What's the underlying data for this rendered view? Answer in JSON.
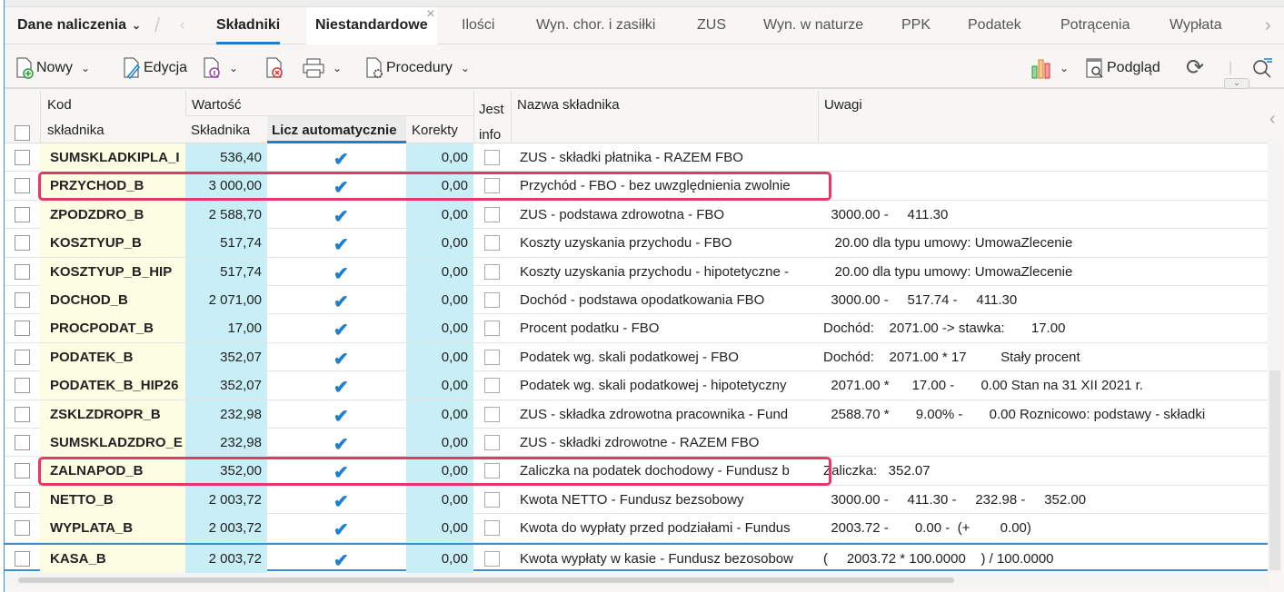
{
  "tabs": {
    "dropdown": "Dane naliczenia",
    "items": [
      "Składniki",
      "Niestandardowe",
      "Ilości",
      "Wyn. chor. i zasiłki",
      "ZUS",
      "Wyn. w naturze",
      "PPK",
      "Podatek",
      "Potrącenia",
      "Wypłata"
    ],
    "active": "Składniki"
  },
  "toolbar": {
    "new": "Nowy",
    "edit": "Edycja",
    "procedures": "Procedury",
    "preview": "Podgląd"
  },
  "columns": {
    "kod1": "Kod",
    "kod2": "składnika",
    "wartosc": "Wartość",
    "skladnika": "Składnika",
    "licz": "Licz automatycznie",
    "korekty": "Korekty",
    "jest1": "Jest",
    "jest2": "info",
    "nazwa": "Nazwa składnika",
    "uwagi": "Uwagi"
  },
  "rows": [
    {
      "kod": "SUMSKLADKIPLA_I",
      "wartosc": "536,40",
      "auto": true,
      "korekty": "0,00",
      "nazwa": "ZUS - składki płatnika - RAZEM FBO",
      "uwagi": ""
    },
    {
      "kod": "PRZYCHOD_B",
      "wartosc": "3 000,00",
      "auto": true,
      "korekty": "0,00",
      "nazwa": "Przychód - FBO - bez uwzględnienia zwolnie",
      "uwagi": "",
      "highlighted": true
    },
    {
      "kod": "ZPODZDRO_B",
      "wartosc": "2 588,70",
      "auto": true,
      "korekty": "0,00",
      "nazwa": "ZUS - podstawa zdrowotna - FBO",
      "uwagi": "  3000.00 -     411.30"
    },
    {
      "kod": "KOSZTYUP_B",
      "wartosc": "517,74",
      "auto": true,
      "korekty": "0,00",
      "nazwa": "Koszty uzyskania przychodu - FBO",
      "uwagi": "   20.00 dla typu umowy: UmowaZlecenie"
    },
    {
      "kod": "KOSZTYUP_B_HIP",
      "wartosc": "517,74",
      "auto": true,
      "korekty": "0,00",
      "nazwa": "Koszty uzyskania przychodu - hipotetyczne -",
      "uwagi": "   20.00 dla typu umowy: UmowaZlecenie"
    },
    {
      "kod": "DOCHOD_B",
      "wartosc": "2 071,00",
      "auto": true,
      "korekty": "0,00",
      "nazwa": "Dochód - podstawa opodatkowania FBO",
      "uwagi": "  3000.00 -     517.74 -     411.30"
    },
    {
      "kod": "PROCPODAT_B",
      "wartosc": "17,00",
      "auto": true,
      "korekty": "0,00",
      "nazwa": "Procent podatku - FBO",
      "uwagi": "Dochód:    2071.00 -> stawka:       17.00"
    },
    {
      "kod": "PODATEK_B",
      "wartosc": "352,07",
      "auto": true,
      "korekty": "0,00",
      "nazwa": "Podatek wg. skali podatkowej - FBO",
      "uwagi": "Dochód:    2071.00 * 17         Stały procent"
    },
    {
      "kod": "PODATEK_B_HIP26",
      "wartosc": "352,07",
      "auto": true,
      "korekty": "0,00",
      "nazwa": "Podatek wg. skali podatkowej - hipotetyczny",
      "uwagi": "  2071.00 *      17.00 -       0.00 Stan na 31 XII 2021 r."
    },
    {
      "kod": "ZSKLZDROPR_B",
      "wartosc": "232,98",
      "auto": true,
      "korekty": "0,00",
      "nazwa": "ZUS - składka zdrowotna pracownika - Fund",
      "uwagi": "  2588.70 *       9.00% -       0.00 Roznicowo: podstawy - składki"
    },
    {
      "kod": "SUMSKLADZDRO_E",
      "wartosc": "232,98",
      "auto": true,
      "korekty": "0,00",
      "nazwa": "ZUS - składki zdrowotne - RAZEM FBO",
      "uwagi": ""
    },
    {
      "kod": "ZALNAPOD_B",
      "wartosc": "352,00",
      "auto": true,
      "korekty": "0,00",
      "nazwa": "Zaliczka na podatek dochodowy - Fundusz b",
      "uwagi": "Zaliczka:   352.07",
      "highlighted": true
    },
    {
      "kod": "NETTO_B",
      "wartosc": "2 003,72",
      "auto": true,
      "korekty": "0,00",
      "nazwa": "Kwota NETTO - Fundusz bezsobowy",
      "uwagi": "  3000.00 -     411.30 -     232.98 -     352.00"
    },
    {
      "kod": "WYPLATA_B",
      "wartosc": "2 003,72",
      "auto": true,
      "korekty": "0,00",
      "nazwa": "Kwota do wypłaty przed podziałami - Fundus",
      "uwagi": "  2003.72 -       0.00 -  (+        0.00)"
    },
    {
      "kod": "KASA_B",
      "wartosc": "2 003,72",
      "auto": true,
      "korekty": "0,00",
      "nazwa": "Kwota wypłaty w kasie - Fundusz bezosobow",
      "uwagi": "(     2003.72 * 100.0000    ) / 100.0000"
    }
  ],
  "colors": {
    "highlight": "#e8356a",
    "accent": "#1d7fd0",
    "kod_bg": "#fdfde4",
    "value_bg": "#c8eef6"
  }
}
